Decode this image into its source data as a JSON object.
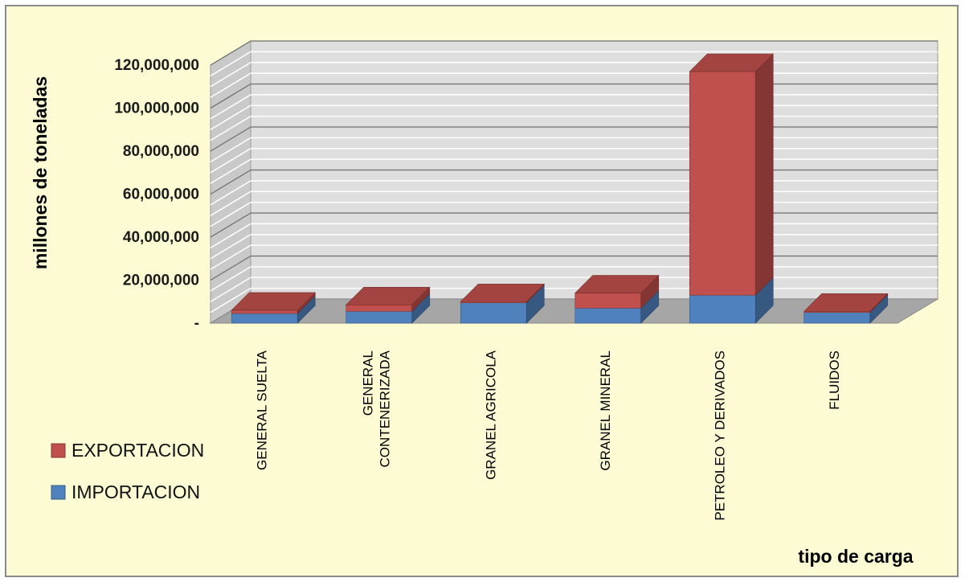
{
  "chart_data": {
    "type": "bar",
    "stacked": true,
    "three_d": true,
    "categories": [
      "GENERAL SUELTA",
      "GENERAL CONTENERIZADA",
      "GRANEL AGRICOLA",
      "GRANEL MINERAL",
      "PETROLEO Y DERIVADOS",
      "FLUIDOS"
    ],
    "category_label_lines": [
      [
        "GENERAL SUELTA"
      ],
      [
        "GENERAL",
        "CONTENERIZADA"
      ],
      [
        "GRANEL AGRICOLA"
      ],
      [
        "GRANEL MINERAL"
      ],
      [
        "PETROLEO Y DERIVADOS"
      ],
      [
        "FLUIDOS"
      ]
    ],
    "series": [
      {
        "name": "IMPORTACION",
        "values": [
          4500000,
          5500000,
          9500000,
          7000000,
          13000000,
          5000000
        ]
      },
      {
        "name": "EXPORTACION",
        "values": [
          1500000,
          3000000,
          500000,
          7000000,
          104000000,
          500000
        ]
      }
    ],
    "series_colors": {
      "IMPORTACION": "#4f81bd",
      "EXPORTACION": "#c0504d"
    },
    "ylim": [
      0,
      120000000
    ],
    "yticks": [
      0,
      20000000,
      40000000,
      60000000,
      80000000,
      100000000,
      120000000
    ],
    "ytick_labels": [
      "-",
      "20,000,000",
      "40,000,000",
      "60,000,000",
      "80,000,000",
      "100,000,000",
      "120,000,000"
    ],
    "ylabel": "millones de toneladas",
    "xlabel": "tipo de carga",
    "legend_position": "left-bottom",
    "grid": true,
    "background": "#fdfbd3"
  }
}
